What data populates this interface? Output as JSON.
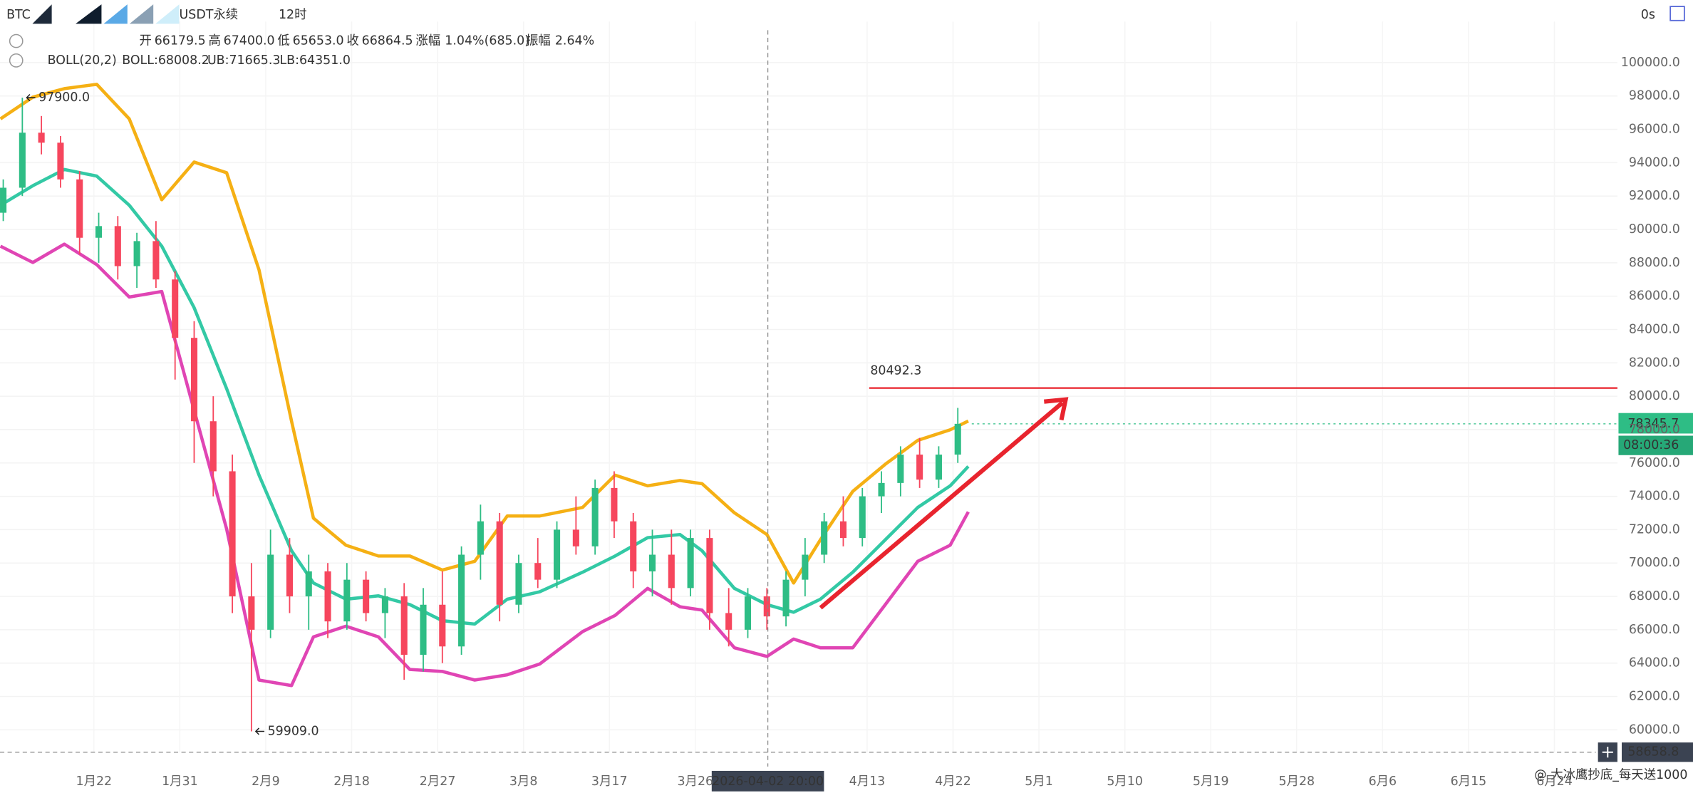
{
  "header": {
    "symbol": "BTC",
    "contract": "USDT永续",
    "interval": "12时",
    "timer": "0s",
    "quote": [
      {
        "label": "开",
        "value": "66179.5"
      },
      {
        "label": "高",
        "value": "67400.0"
      },
      {
        "label": "低",
        "value": "65653.0"
      },
      {
        "label": "收",
        "value": "66864.5"
      },
      {
        "label": "涨幅",
        "value": "1.04%(685.0)"
      },
      {
        "label": "振幅",
        "value": "2.64%"
      }
    ]
  },
  "watermark": "@ 大冰鹰抄底_每天送1000",
  "chart_data": {
    "type": "candlestick",
    "up_color": "#2ebd85",
    "down_color": "#f6465d",
    "grid": true,
    "xlim": [
      12.16,
      181.6
    ],
    "xticks": [
      {
        "value": 22,
        "label": "1月22"
      },
      {
        "value": 31,
        "label": "1月31"
      },
      {
        "value": 40,
        "label": "2月9"
      },
      {
        "value": 49,
        "label": "2月18"
      },
      {
        "value": 58,
        "label": "2月27"
      },
      {
        "value": 67,
        "label": "3月8"
      },
      {
        "value": 76,
        "label": "3月17"
      },
      {
        "value": 85,
        "label": "3月26"
      },
      {
        "value": 103,
        "label": "4月13"
      },
      {
        "value": 112,
        "label": "4月22"
      },
      {
        "value": 121,
        "label": "5月1"
      },
      {
        "value": 130,
        "label": "5月10"
      },
      {
        "value": 139,
        "label": "5月19"
      },
      {
        "value": 148,
        "label": "5月28"
      },
      {
        "value": 157,
        "label": "6月6"
      },
      {
        "value": 166,
        "label": "6月15"
      },
      {
        "value": 175,
        "label": "6月24"
      }
    ],
    "ylim": [
      58640,
      102460
    ],
    "yticks": [
      {
        "value": 60000,
        "label": "60000.0"
      },
      {
        "value": 62000,
        "label": "62000.0"
      },
      {
        "value": 64000,
        "label": "64000.0"
      },
      {
        "value": 66000,
        "label": "66000.0"
      },
      {
        "value": 68000,
        "label": "68000.0"
      },
      {
        "value": 70000,
        "label": "70000.0"
      },
      {
        "value": 72000,
        "label": "72000.0"
      },
      {
        "value": 74000,
        "label": "74000.0"
      },
      {
        "value": 76000,
        "label": "76000.0"
      },
      {
        "value": 78000,
        "label": "78000.0"
      },
      {
        "value": 80000,
        "label": "80000.0"
      },
      {
        "value": 82000,
        "label": "82000.0"
      },
      {
        "value": 84000,
        "label": "84000.0"
      },
      {
        "value": 86000,
        "label": "86000.0"
      },
      {
        "value": 88000,
        "label": "88000.0"
      },
      {
        "value": 90000,
        "label": "90000.0"
      },
      {
        "value": 92000,
        "label": "92000.0"
      },
      {
        "value": 94000,
        "label": "94000.0"
      },
      {
        "value": 96000,
        "label": "96000.0"
      },
      {
        "value": 98000,
        "label": "98000.0"
      },
      {
        "value": 100000,
        "label": "100000.0"
      }
    ],
    "candles": {
      "x": [
        12.5,
        14.5,
        16.5,
        18.5,
        20.5,
        22.5,
        24.5,
        26.5,
        28.5,
        30.5,
        32.5,
        34.5,
        36.5,
        38.5,
        40.5,
        42.5,
        44.5,
        46.5,
        48.5,
        50.5,
        52.5,
        54.5,
        56.5,
        58.5,
        60.5,
        62.5,
        64.5,
        66.5,
        68.5,
        70.5,
        72.5,
        74.5,
        76.5,
        78.5,
        80.5,
        82.5,
        84.5,
        86.5,
        88.5,
        90.5,
        92.5,
        94.5,
        96.5,
        98.5,
        100.5,
        102.5,
        104.5,
        106.5,
        108.5,
        110.5,
        112.5
      ],
      "open": [
        91000,
        92500,
        95800,
        95200,
        93000,
        89500,
        90200,
        87800,
        89300,
        87000,
        83500,
        78500,
        75500,
        68000,
        66000,
        70500,
        68000,
        69500,
        66500,
        69000,
        67000,
        68000,
        64500,
        67500,
        65000,
        70500,
        72500,
        67500,
        70000,
        69000,
        72000,
        71000,
        74500,
        72500,
        69500,
        70500,
        68500,
        71500,
        67000,
        66000,
        68000,
        66800,
        69000,
        70500,
        72500,
        71500,
        74000,
        74800,
        76500,
        75000,
        76500
      ],
      "high": [
        93000,
        97900,
        96800,
        95600,
        93500,
        91000,
        90800,
        89800,
        90500,
        87500,
        84500,
        80000,
        76500,
        70000,
        72000,
        71500,
        70500,
        70000,
        70000,
        69500,
        68500,
        68800,
        68500,
        69500,
        71000,
        73500,
        73000,
        70500,
        71500,
        72500,
        74000,
        75000,
        75500,
        73000,
        72000,
        72000,
        72000,
        72000,
        68500,
        68500,
        68500,
        69500,
        71500,
        73000,
        74000,
        74500,
        75500,
        77000,
        77500,
        77000,
        79300
      ],
      "low": [
        90500,
        92000,
        94500,
        92500,
        88500,
        88000,
        87000,
        86500,
        86500,
        81000,
        76000,
        74000,
        67000,
        59909,
        65500,
        67000,
        66000,
        65500,
        66000,
        66500,
        65500,
        63000,
        63500,
        64000,
        64500,
        69000,
        66500,
        67000,
        68500,
        68500,
        70500,
        70500,
        71500,
        68500,
        68000,
        67500,
        68000,
        66000,
        65000,
        65500,
        66000,
        66200,
        68000,
        70000,
        71000,
        71000,
        73000,
        74000,
        74500,
        74500,
        76000
      ],
      "close": [
        92500,
        95800,
        95200,
        93000,
        89500,
        90200,
        87800,
        89300,
        87000,
        83500,
        78500,
        75500,
        68000,
        66000,
        70500,
        68000,
        69500,
        66500,
        69000,
        67000,
        68000,
        64500,
        67500,
        65000,
        70500,
        72500,
        67500,
        70000,
        69000,
        72000,
        71000,
        74500,
        72500,
        69500,
        70500,
        68500,
        71500,
        67000,
        66000,
        68000,
        66800,
        69000,
        70500,
        72500,
        71500,
        74000,
        74800,
        76500,
        75000,
        76500,
        78345.7
      ]
    },
    "indicator": {
      "name": "BOLL(20,2)",
      "x": [
        12.2,
        15.6,
        18.9,
        22.3,
        25.7,
        29.1,
        32.5,
        35.9,
        39.3,
        42.7,
        45.0,
        48.4,
        51.8,
        55.1,
        58.5,
        61.9,
        65.3,
        68.7,
        73.2,
        76.6,
        80.0,
        83.4,
        85.7,
        89.1,
        92.5,
        95.3,
        98.1,
        101.5,
        104.9,
        108.3,
        111.7,
        113.6
      ],
      "series": [
        {
          "name": "BOLL:68008.2",
          "color": "#33c9a5",
          "values": [
            91450,
            92620,
            93590,
            93200,
            91450,
            89000,
            85310,
            80450,
            75270,
            70740,
            68800,
            67830,
            68030,
            67510,
            66540,
            66340,
            67830,
            68280,
            69450,
            70420,
            71520,
            71710,
            70740,
            68480,
            67510,
            67050,
            67830,
            69450,
            71390,
            73330,
            74630,
            75790
          ]
        },
        {
          "name": "UB:71665.3",
          "color": "#f5b014",
          "values": [
            96630,
            97930,
            98440,
            98700,
            96630,
            91780,
            94040,
            93400,
            87570,
            78510,
            72690,
            71070,
            70420,
            70420,
            69580,
            70100,
            72820,
            72820,
            73330,
            75270,
            74630,
            74950,
            74760,
            73010,
            71710,
            68800,
            71390,
            74300,
            75920,
            77350,
            77990,
            78510
          ]
        },
        {
          "name": "LB:64351.0",
          "color": "#e045b4",
          "values": [
            89000,
            88020,
            89120,
            87890,
            85950,
            86280,
            79160,
            72040,
            62980,
            62650,
            65570,
            66210,
            65570,
            63620,
            63500,
            62980,
            63300,
            63950,
            65890,
            66860,
            68480,
            67380,
            67180,
            64920,
            64400,
            65440,
            64920,
            64920,
            67510,
            70100,
            71070,
            73070
          ]
        }
      ]
    },
    "annotations": [
      {
        "x": 14.5,
        "value": 97900,
        "label": "97900.0"
      },
      {
        "x": 38.5,
        "value": 59909,
        "label": "59909.0"
      }
    ],
    "hline": {
      "value": 80492.3,
      "color": "#e8202a"
    },
    "last_price": {
      "value": 78345.7,
      "countdown": "08:00:36"
    },
    "crosshair": {
      "x": {
        "value": 92.6,
        "label": "2026-04-02 20:00"
      },
      "y": {
        "value": 58658.8,
        "label": "58658.8"
      }
    }
  }
}
